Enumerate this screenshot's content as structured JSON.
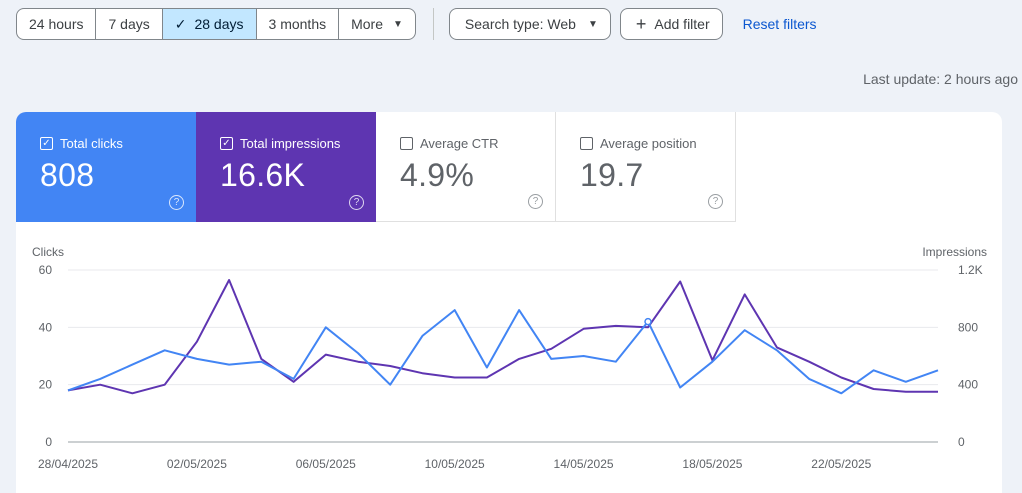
{
  "toolbar": {
    "ranges": [
      {
        "label": "24 hours",
        "active": false
      },
      {
        "label": "7 days",
        "active": false
      },
      {
        "label": "28 days",
        "active": true
      },
      {
        "label": "3 months",
        "active": false
      },
      {
        "label": "More",
        "active": false
      }
    ],
    "search_type": "Search type: Web",
    "add_filter": "Add filter",
    "reset": "Reset filters"
  },
  "last_update": "Last update: 2 hours ago",
  "metrics": [
    {
      "label": "Total clicks",
      "value": "808",
      "checked": true
    },
    {
      "label": "Total impressions",
      "value": "16.6K",
      "checked": true
    },
    {
      "label": "Average CTR",
      "value": "4.9%",
      "checked": false
    },
    {
      "label": "Average position",
      "value": "19.7",
      "checked": false
    }
  ],
  "colors": {
    "clicks": "#4285f4",
    "impressions": "#5e35b1"
  },
  "chart_data": {
    "type": "line",
    "ylabel": "Clicks",
    "y2label": "Impressions",
    "ylim": [
      0,
      60
    ],
    "y2lim": [
      0,
      1200
    ],
    "yticks": [
      "0",
      "20",
      "40",
      "60"
    ],
    "y2ticks": [
      "0",
      "400",
      "800",
      "1.2K"
    ],
    "xtick_labels": [
      "28/04/2025",
      "02/05/2025",
      "06/05/2025",
      "10/05/2025",
      "14/05/2025",
      "18/05/2025",
      "22/05/2025"
    ],
    "x": [
      "28/04/2025",
      "29/04/2025",
      "30/04/2025",
      "01/05/2025",
      "02/05/2025",
      "03/05/2025",
      "04/05/2025",
      "05/05/2025",
      "06/05/2025",
      "07/05/2025",
      "08/05/2025",
      "09/05/2025",
      "10/05/2025",
      "11/05/2025",
      "12/05/2025",
      "13/05/2025",
      "14/05/2025",
      "15/05/2025",
      "16/05/2025",
      "17/05/2025",
      "18/05/2025",
      "19/05/2025",
      "20/05/2025",
      "21/05/2025",
      "22/05/2025",
      "23/05/2025",
      "24/05/2025",
      "25/05/2025"
    ],
    "series": [
      {
        "name": "Total clicks",
        "axis": "left",
        "values": [
          18,
          22,
          27,
          32,
          29,
          27,
          28,
          22,
          40,
          31,
          20,
          37,
          46,
          26,
          46,
          29,
          30,
          28,
          42,
          19,
          28,
          39,
          32,
          22,
          17,
          25,
          21,
          25
        ]
      },
      {
        "name": "Total impressions",
        "axis": "right",
        "values": [
          360,
          400,
          340,
          400,
          700,
          1130,
          580,
          420,
          610,
          560,
          530,
          480,
          450,
          450,
          580,
          650,
          790,
          810,
          800,
          1120,
          570,
          1030,
          660,
          560,
          450,
          370,
          350,
          350
        ]
      }
    ],
    "grid": true,
    "legend": "none"
  }
}
